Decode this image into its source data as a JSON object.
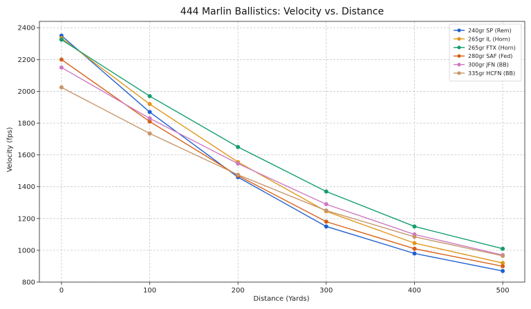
{
  "chart_data": {
    "type": "line",
    "title": "444 Marlin Ballistics: Velocity vs. Distance",
    "xlabel": "Distance (Yards)",
    "ylabel": "Velocity (fps)",
    "x": [
      0,
      100,
      200,
      300,
      400,
      500
    ],
    "xlim": [
      -25,
      525
    ],
    "ylim": [
      800,
      2440
    ],
    "xticks": [
      0,
      100,
      200,
      300,
      400,
      500
    ],
    "yticks": [
      800,
      1000,
      1200,
      1400,
      1600,
      1800,
      2000,
      2200,
      2400
    ],
    "grid": true,
    "legend_position": "top-right",
    "series": [
      {
        "name": "240gr SP (Rem)",
        "color": "#1f5fcf",
        "values": [
          2350,
          1870,
          1460,
          1150,
          980,
          870
        ]
      },
      {
        "name": "265gr IL (Horn)",
        "color": "#e0961a",
        "values": [
          2335,
          1920,
          1555,
          1245,
          1045,
          920
        ]
      },
      {
        "name": "265gr FTX (Horn)",
        "color": "#139e6e",
        "values": [
          2325,
          1970,
          1650,
          1370,
          1150,
          1010
        ]
      },
      {
        "name": "280gr SAF (Fed)",
        "color": "#d65f16",
        "values": [
          2200,
          1810,
          1470,
          1180,
          1010,
          900
        ]
      },
      {
        "name": "300gr JFN (BB)",
        "color": "#cc7ac0",
        "values": [
          2150,
          1830,
          1545,
          1290,
          1100,
          970
        ]
      },
      {
        "name": "335gr HCFN (BB)",
        "color": "#c7956a",
        "values": [
          2025,
          1735,
          1475,
          1250,
          1085,
          965
        ]
      }
    ]
  }
}
